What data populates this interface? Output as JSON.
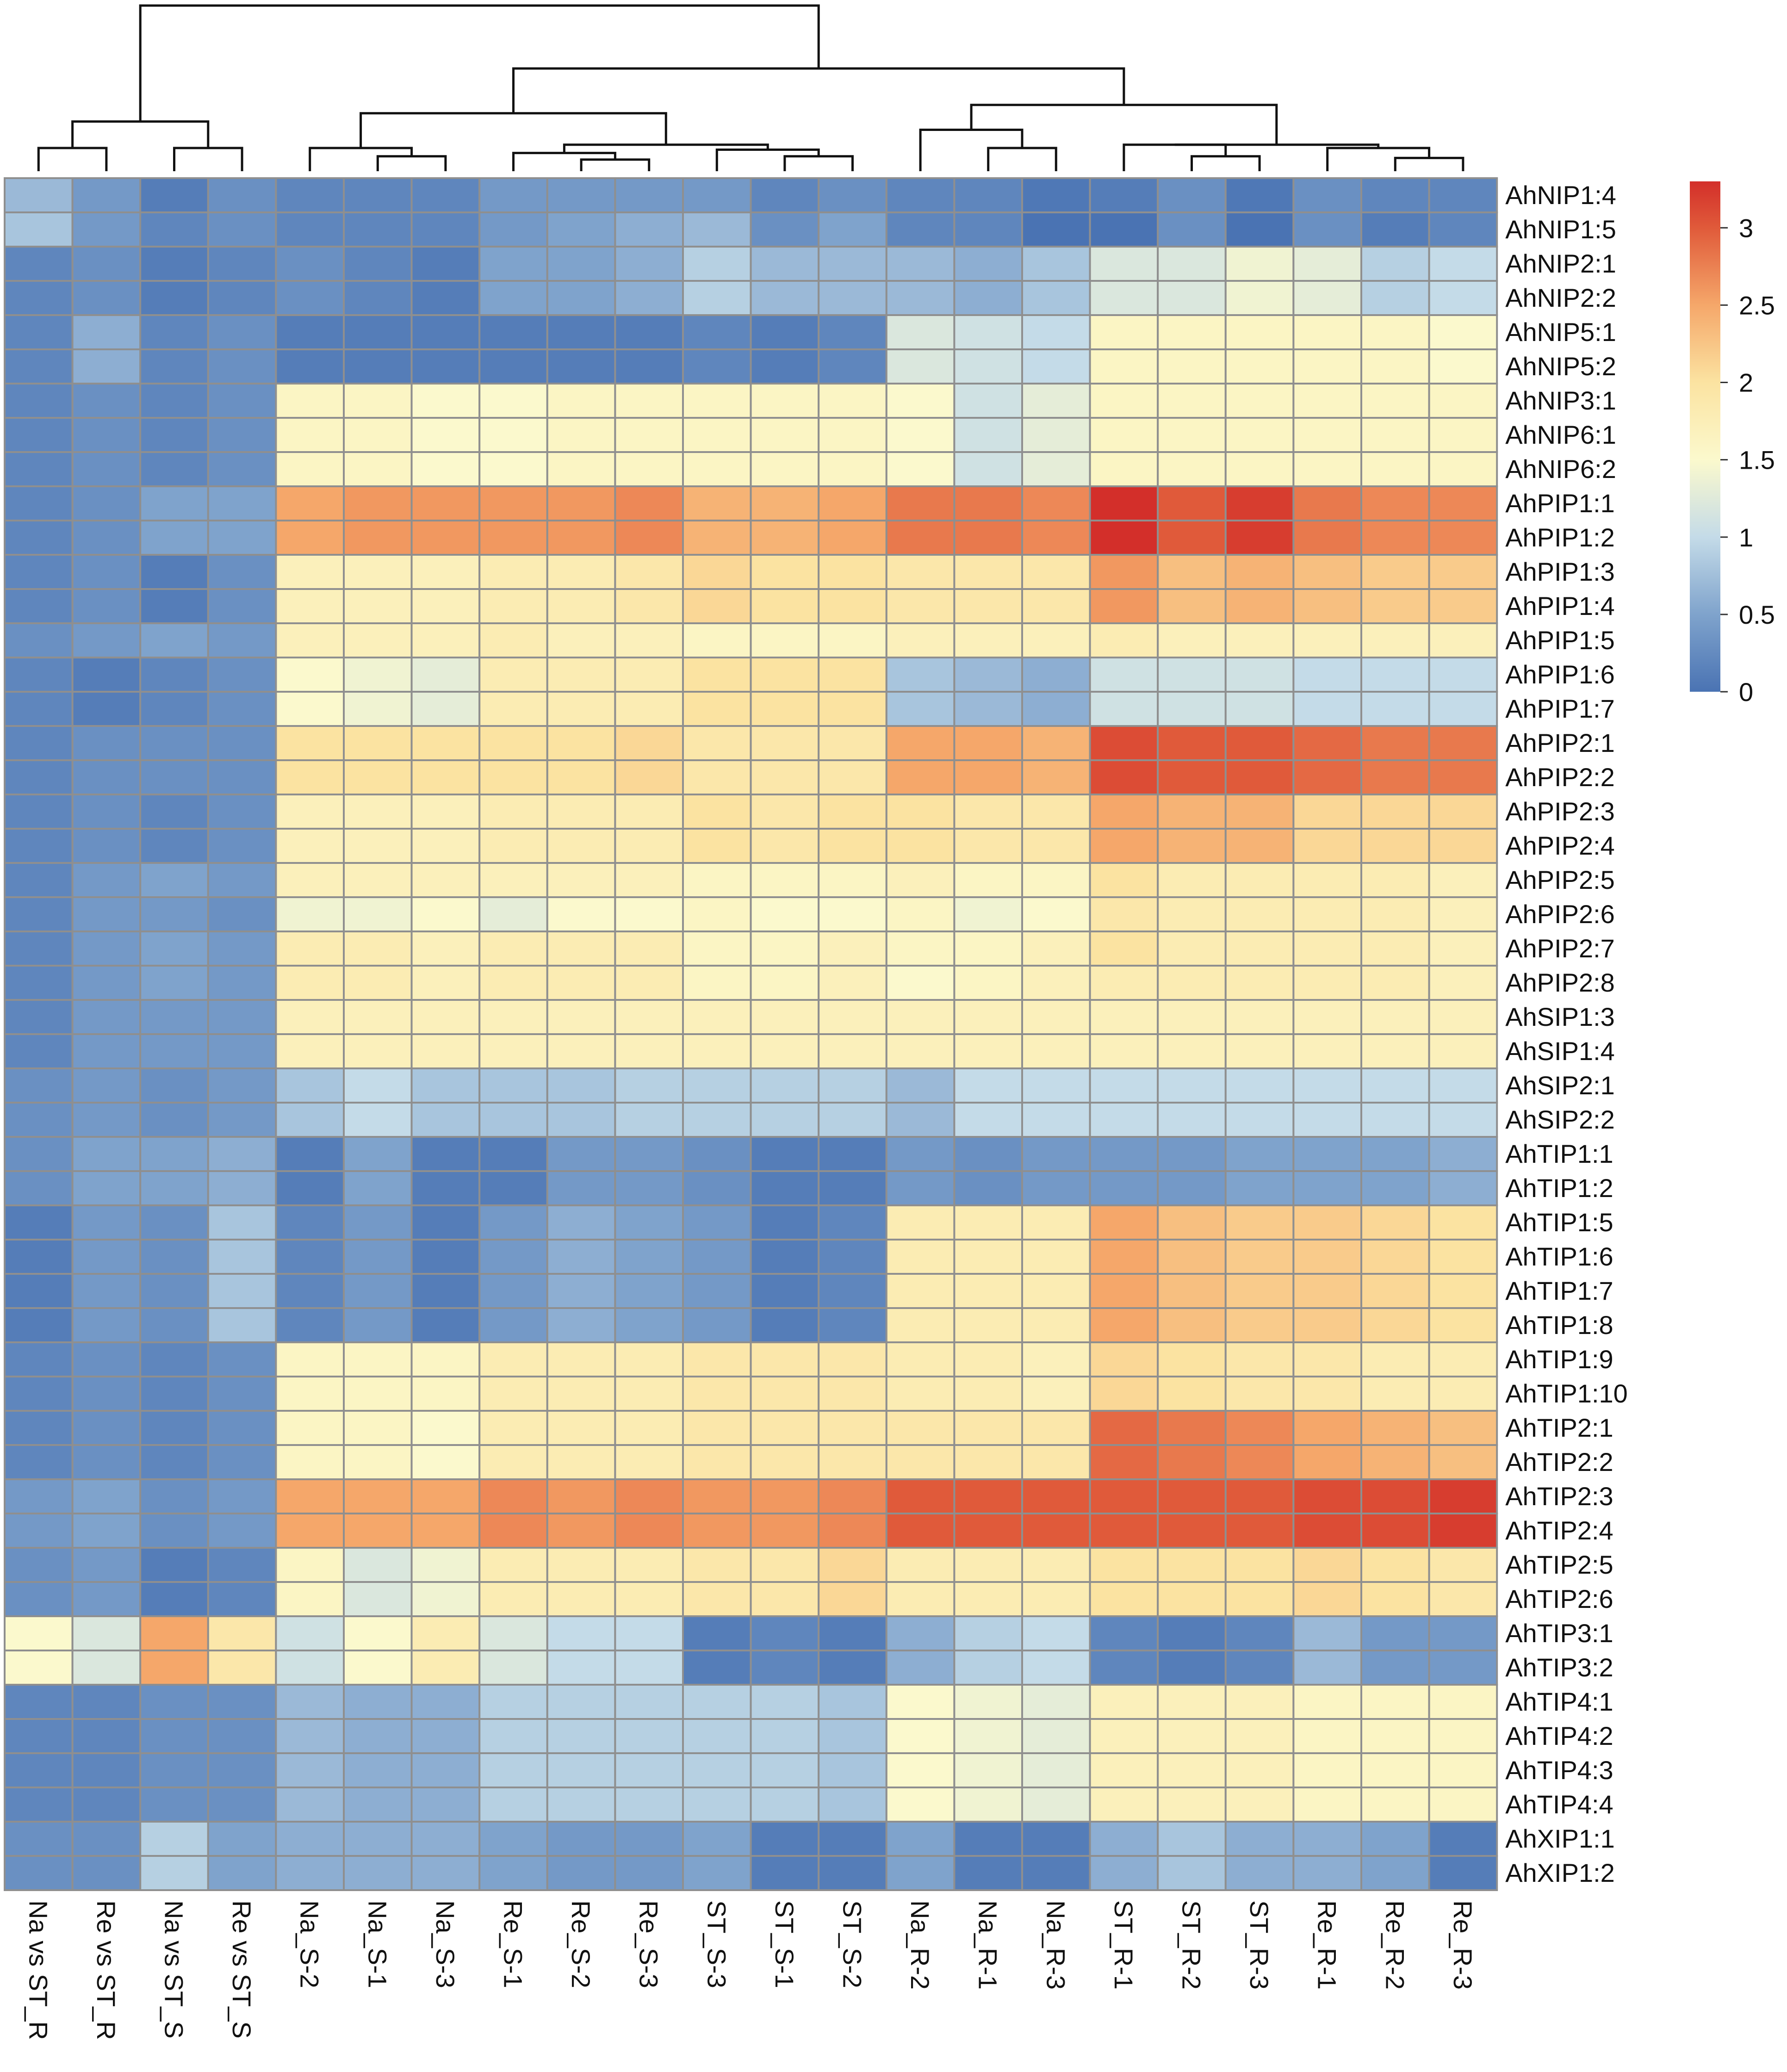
{
  "chart_data": {
    "type": "heatmap",
    "title": "",
    "color_scale": {
      "min": 0,
      "max": 3.3,
      "stops": [
        {
          "v": 0.0,
          "c": "#4a73b3"
        },
        {
          "v": 0.5,
          "c": "#7fa3cc"
        },
        {
          "v": 1.0,
          "c": "#c4dbe8"
        },
        {
          "v": 1.5,
          "c": "#fbf9cd"
        },
        {
          "v": 2.0,
          "c": "#fbe3a1"
        },
        {
          "v": 2.5,
          "c": "#f5a76a"
        },
        {
          "v": 3.0,
          "c": "#e05a3a"
        },
        {
          "v": 3.3,
          "c": "#d32f2a"
        }
      ],
      "legend_ticks": [
        {
          "v": 3,
          "label": "3"
        },
        {
          "v": 2.5,
          "label": "2.5"
        },
        {
          "v": 2,
          "label": "2"
        },
        {
          "v": 1.5,
          "label": "1.5"
        },
        {
          "v": 1,
          "label": "1"
        },
        {
          "v": 0.5,
          "label": "0.5"
        },
        {
          "v": 0,
          "label": "0"
        }
      ]
    },
    "columns": [
      "Na vs ST_R",
      "Re vs ST_R",
      "Na vs ST_S",
      "Re vs ST_S",
      "Na_S-2",
      "Na_S-1",
      "Na_S-3",
      "Re_S-1",
      "Re_S-2",
      "Re_S-3",
      "ST_S-3",
      "ST_S-1",
      "ST_S-2",
      "Na_R-2",
      "Na_R-1",
      "Na_R-3",
      "ST_R-1",
      "ST_R-2",
      "ST_R-3",
      "Re_R-1",
      "Re_R-2",
      "Re_R-3"
    ],
    "rows": [
      "AhNIP1:4",
      "AhNIP1:5",
      "AhNIP2:1",
      "AhNIP2:2",
      "AhNIP5:1",
      "AhNIP5:2",
      "AhNIP3:1",
      "AhNIP6:1",
      "AhNIP6:2",
      "AhPIP1:1",
      "AhPIP1:2",
      "AhPIP1:3",
      "AhPIP1:4",
      "AhPIP1:5",
      "AhPIP1:6",
      "AhPIP1:7",
      "AhPIP2:1",
      "AhPIP2:2",
      "AhPIP2:3",
      "AhPIP2:4",
      "AhPIP2:5",
      "AhPIP2:6",
      "AhPIP2:7",
      "AhPIP2:8",
      "AhSIP1:3",
      "AhSIP1:4",
      "AhSIP2:1",
      "AhSIP2:2",
      "AhTIP1:1",
      "AhTIP1:2",
      "AhTIP1:5",
      "AhTIP1:6",
      "AhTIP1:7",
      "AhTIP1:8",
      "AhTIP1:9",
      "AhTIP1:10",
      "AhTIP2:1",
      "AhTIP2:2",
      "AhTIP2:3",
      "AhTIP2:4",
      "AhTIP2:5",
      "AhTIP2:6",
      "AhTIP3:1",
      "AhTIP3:2",
      "AhTIP4:1",
      "AhTIP4:2",
      "AhTIP4:3",
      "AhTIP4:4",
      "AhXIP1:1",
      "AhXIP1:2"
    ],
    "values": [
      [
        0.7,
        0.4,
        0.1,
        0.3,
        0.2,
        0.2,
        0.2,
        0.4,
        0.4,
        0.4,
        0.4,
        0.2,
        0.3,
        0.2,
        0.2,
        0.05,
        0.1,
        0.3,
        0.05,
        0.3,
        0.2,
        0.2
      ],
      [
        0.8,
        0.4,
        0.2,
        0.3,
        0.2,
        0.2,
        0.2,
        0.4,
        0.5,
        0.6,
        0.7,
        0.3,
        0.5,
        0.2,
        0.2,
        0.0,
        0.0,
        0.3,
        0.0,
        0.3,
        0.1,
        0.2
      ],
      [
        0.2,
        0.3,
        0.1,
        0.2,
        0.3,
        0.2,
        0.1,
        0.5,
        0.5,
        0.6,
        0.9,
        0.7,
        0.7,
        0.7,
        0.6,
        0.8,
        1.2,
        1.2,
        1.4,
        1.3,
        0.9,
        1.0
      ],
      [
        0.2,
        0.3,
        0.1,
        0.2,
        0.3,
        0.2,
        0.1,
        0.5,
        0.5,
        0.6,
        0.9,
        0.7,
        0.7,
        0.7,
        0.6,
        0.8,
        1.2,
        1.2,
        1.4,
        1.3,
        0.9,
        1.0
      ],
      [
        0.2,
        0.6,
        0.2,
        0.3,
        0.1,
        0.1,
        0.1,
        0.1,
        0.1,
        0.1,
        0.2,
        0.1,
        0.2,
        1.2,
        1.1,
        1.0,
        1.6,
        1.6,
        1.6,
        1.6,
        1.6,
        1.5
      ],
      [
        0.2,
        0.6,
        0.2,
        0.3,
        0.1,
        0.1,
        0.1,
        0.1,
        0.1,
        0.1,
        0.2,
        0.1,
        0.2,
        1.2,
        1.1,
        1.0,
        1.6,
        1.6,
        1.6,
        1.6,
        1.6,
        1.5
      ],
      [
        0.2,
        0.3,
        0.2,
        0.3,
        1.6,
        1.6,
        1.5,
        1.5,
        1.6,
        1.6,
        1.6,
        1.6,
        1.6,
        1.5,
        1.1,
        1.3,
        1.6,
        1.6,
        1.6,
        1.6,
        1.6,
        1.6
      ],
      [
        0.2,
        0.3,
        0.2,
        0.3,
        1.6,
        1.6,
        1.5,
        1.5,
        1.6,
        1.6,
        1.6,
        1.6,
        1.6,
        1.5,
        1.1,
        1.3,
        1.6,
        1.6,
        1.6,
        1.6,
        1.6,
        1.6
      ],
      [
        0.2,
        0.3,
        0.2,
        0.3,
        1.6,
        1.6,
        1.5,
        1.5,
        1.6,
        1.6,
        1.6,
        1.6,
        1.6,
        1.5,
        1.1,
        1.3,
        1.6,
        1.6,
        1.6,
        1.6,
        1.6,
        1.6
      ],
      [
        0.2,
        0.3,
        0.5,
        0.5,
        2.5,
        2.6,
        2.6,
        2.6,
        2.6,
        2.7,
        2.4,
        2.4,
        2.5,
        2.8,
        2.8,
        2.7,
        3.3,
        3.0,
        3.2,
        2.8,
        2.7,
        2.7
      ],
      [
        0.2,
        0.3,
        0.5,
        0.5,
        2.5,
        2.6,
        2.6,
        2.6,
        2.6,
        2.7,
        2.4,
        2.4,
        2.5,
        2.8,
        2.8,
        2.7,
        3.3,
        3.0,
        3.2,
        2.8,
        2.7,
        2.7
      ],
      [
        0.2,
        0.3,
        0.1,
        0.3,
        1.7,
        1.7,
        1.7,
        1.8,
        1.8,
        1.9,
        2.1,
        2.0,
        2.0,
        1.9,
        1.9,
        1.9,
        2.6,
        2.3,
        2.4,
        2.3,
        2.2,
        2.2
      ],
      [
        0.2,
        0.3,
        0.1,
        0.3,
        1.7,
        1.7,
        1.7,
        1.8,
        1.8,
        1.9,
        2.1,
        2.0,
        2.0,
        1.9,
        1.9,
        1.9,
        2.6,
        2.3,
        2.4,
        2.3,
        2.2,
        2.2
      ],
      [
        0.3,
        0.4,
        0.5,
        0.4,
        1.7,
        1.7,
        1.7,
        1.8,
        1.7,
        1.7,
        1.6,
        1.6,
        1.6,
        1.7,
        1.7,
        1.7,
        1.8,
        1.7,
        1.7,
        1.7,
        1.7,
        1.7
      ],
      [
        0.2,
        0.1,
        0.2,
        0.3,
        1.5,
        1.4,
        1.3,
        1.8,
        1.8,
        1.8,
        2.0,
        2.0,
        2.0,
        0.8,
        0.7,
        0.6,
        1.1,
        1.1,
        1.1,
        1.0,
        1.0,
        1.0
      ],
      [
        0.2,
        0.1,
        0.2,
        0.3,
        1.5,
        1.4,
        1.3,
        1.8,
        1.8,
        1.8,
        2.0,
        2.0,
        2.0,
        0.8,
        0.7,
        0.6,
        1.1,
        1.1,
        1.1,
        1.0,
        1.0,
        1.0
      ],
      [
        0.2,
        0.3,
        0.3,
        0.3,
        2.0,
        2.0,
        2.0,
        2.0,
        2.0,
        2.1,
        1.9,
        1.9,
        1.9,
        2.5,
        2.5,
        2.4,
        3.1,
        3.0,
        3.0,
        2.9,
        2.8,
        2.8
      ],
      [
        0.2,
        0.3,
        0.3,
        0.3,
        2.0,
        2.0,
        2.0,
        2.0,
        2.0,
        2.1,
        1.9,
        1.9,
        1.9,
        2.5,
        2.5,
        2.4,
        3.1,
        3.0,
        3.0,
        2.9,
        2.8,
        2.8
      ],
      [
        0.2,
        0.3,
        0.2,
        0.3,
        1.7,
        1.7,
        1.7,
        1.8,
        1.8,
        1.8,
        2.0,
        1.9,
        2.0,
        2.0,
        1.9,
        1.9,
        2.5,
        2.4,
        2.4,
        2.1,
        2.1,
        2.1
      ],
      [
        0.2,
        0.3,
        0.2,
        0.3,
        1.7,
        1.7,
        1.7,
        1.8,
        1.8,
        1.8,
        2.0,
        1.9,
        2.0,
        2.0,
        1.9,
        1.9,
        2.5,
        2.4,
        2.4,
        2.1,
        2.1,
        2.1
      ],
      [
        0.2,
        0.4,
        0.5,
        0.4,
        1.7,
        1.7,
        1.7,
        1.7,
        1.7,
        1.7,
        1.6,
        1.6,
        1.6,
        1.7,
        1.6,
        1.6,
        2.0,
        1.8,
        1.8,
        1.8,
        1.8,
        1.7
      ],
      [
        0.2,
        0.4,
        0.4,
        0.3,
        1.4,
        1.4,
        1.5,
        1.3,
        1.5,
        1.5,
        1.6,
        1.5,
        1.5,
        1.6,
        1.4,
        1.5,
        1.9,
        1.8,
        1.8,
        1.8,
        1.8,
        1.7
      ],
      [
        0.2,
        0.4,
        0.5,
        0.4,
        1.8,
        1.8,
        1.7,
        1.8,
        1.8,
        1.8,
        1.6,
        1.6,
        1.7,
        1.6,
        1.6,
        1.7,
        2.0,
        1.8,
        1.8,
        1.8,
        1.8,
        1.7
      ],
      [
        0.2,
        0.4,
        0.5,
        0.4,
        1.8,
        1.8,
        1.7,
        1.8,
        1.8,
        1.8,
        1.6,
        1.6,
        1.7,
        1.5,
        1.6,
        1.7,
        1.8,
        1.8,
        1.8,
        1.8,
        1.8,
        1.7
      ],
      [
        0.2,
        0.4,
        0.4,
        0.4,
        1.7,
        1.7,
        1.7,
        1.7,
        1.7,
        1.7,
        1.7,
        1.7,
        1.7,
        1.7,
        1.7,
        1.7,
        1.7,
        1.7,
        1.7,
        1.7,
        1.7,
        1.7
      ],
      [
        0.2,
        0.4,
        0.4,
        0.4,
        1.7,
        1.7,
        1.7,
        1.7,
        1.7,
        1.7,
        1.7,
        1.7,
        1.7,
        1.7,
        1.7,
        1.7,
        1.7,
        1.7,
        1.7,
        1.7,
        1.7,
        1.7
      ],
      [
        0.3,
        0.4,
        0.3,
        0.4,
        0.8,
        1.0,
        0.8,
        0.8,
        0.8,
        0.9,
        0.9,
        0.9,
        0.9,
        0.7,
        1.0,
        1.0,
        1.0,
        1.0,
        1.0,
        1.0,
        1.0,
        1.0
      ],
      [
        0.3,
        0.4,
        0.3,
        0.4,
        0.8,
        1.0,
        0.8,
        0.8,
        0.8,
        0.9,
        0.9,
        0.9,
        0.9,
        0.7,
        1.0,
        1.0,
        1.0,
        1.0,
        1.0,
        1.0,
        1.0,
        1.0
      ],
      [
        0.3,
        0.5,
        0.5,
        0.6,
        0.1,
        0.5,
        0.1,
        0.1,
        0.4,
        0.4,
        0.3,
        0.1,
        0.1,
        0.4,
        0.3,
        0.4,
        0.4,
        0.4,
        0.5,
        0.5,
        0.5,
        0.6
      ],
      [
        0.3,
        0.5,
        0.5,
        0.6,
        0.1,
        0.5,
        0.1,
        0.1,
        0.4,
        0.4,
        0.3,
        0.1,
        0.1,
        0.4,
        0.3,
        0.4,
        0.4,
        0.4,
        0.5,
        0.5,
        0.5,
        0.6
      ],
      [
        0.1,
        0.4,
        0.3,
        0.8,
        0.2,
        0.4,
        0.1,
        0.4,
        0.6,
        0.5,
        0.4,
        0.1,
        0.2,
        1.8,
        1.8,
        1.8,
        2.5,
        2.3,
        2.2,
        2.2,
        2.1,
        2.0
      ],
      [
        0.1,
        0.4,
        0.3,
        0.8,
        0.2,
        0.4,
        0.1,
        0.4,
        0.6,
        0.5,
        0.4,
        0.1,
        0.2,
        1.8,
        1.8,
        1.8,
        2.5,
        2.3,
        2.2,
        2.2,
        2.1,
        2.0
      ],
      [
        0.1,
        0.4,
        0.3,
        0.8,
        0.2,
        0.4,
        0.1,
        0.4,
        0.6,
        0.5,
        0.4,
        0.1,
        0.2,
        1.8,
        1.8,
        1.8,
        2.5,
        2.3,
        2.2,
        2.2,
        2.1,
        2.0
      ],
      [
        0.1,
        0.4,
        0.3,
        0.8,
        0.2,
        0.4,
        0.1,
        0.4,
        0.6,
        0.5,
        0.4,
        0.1,
        0.2,
        1.8,
        1.8,
        1.8,
        2.5,
        2.3,
        2.2,
        2.2,
        2.1,
        2.0
      ],
      [
        0.2,
        0.3,
        0.2,
        0.3,
        1.6,
        1.6,
        1.6,
        1.8,
        1.8,
        1.8,
        1.9,
        1.9,
        1.9,
        1.8,
        1.8,
        1.7,
        2.1,
        2.0,
        1.9,
        1.9,
        1.8,
        1.8
      ],
      [
        0.2,
        0.3,
        0.2,
        0.3,
        1.6,
        1.6,
        1.6,
        1.8,
        1.8,
        1.8,
        1.9,
        1.9,
        1.9,
        1.8,
        1.8,
        1.7,
        2.1,
        2.0,
        1.9,
        1.9,
        1.8,
        1.8
      ],
      [
        0.2,
        0.3,
        0.2,
        0.3,
        1.6,
        1.6,
        1.5,
        1.8,
        1.8,
        1.8,
        1.9,
        1.9,
        1.9,
        1.9,
        1.9,
        1.9,
        2.9,
        2.8,
        2.7,
        2.5,
        2.4,
        2.3
      ],
      [
        0.2,
        0.3,
        0.2,
        0.3,
        1.6,
        1.6,
        1.5,
        1.8,
        1.8,
        1.8,
        1.9,
        1.9,
        1.9,
        1.9,
        1.9,
        1.9,
        2.9,
        2.8,
        2.7,
        2.5,
        2.4,
        2.3
      ],
      [
        0.4,
        0.5,
        0.3,
        0.4,
        2.5,
        2.5,
        2.5,
        2.7,
        2.6,
        2.7,
        2.6,
        2.6,
        2.7,
        3.0,
        3.0,
        3.0,
        3.0,
        3.0,
        3.0,
        3.1,
        3.1,
        3.2
      ],
      [
        0.4,
        0.5,
        0.3,
        0.4,
        2.5,
        2.5,
        2.5,
        2.7,
        2.6,
        2.7,
        2.6,
        2.6,
        2.7,
        3.0,
        3.0,
        3.0,
        3.0,
        3.0,
        3.0,
        3.1,
        3.1,
        3.2
      ],
      [
        0.3,
        0.4,
        0.1,
        0.2,
        1.6,
        1.2,
        1.4,
        1.8,
        1.8,
        1.8,
        1.9,
        1.9,
        2.1,
        1.8,
        1.8,
        1.8,
        2.0,
        2.0,
        2.0,
        2.1,
        2.0,
        1.9
      ],
      [
        0.3,
        0.4,
        0.1,
        0.2,
        1.6,
        1.2,
        1.4,
        1.8,
        1.8,
        1.8,
        1.9,
        1.9,
        2.1,
        1.8,
        1.8,
        1.8,
        2.0,
        2.0,
        2.0,
        2.1,
        2.0,
        1.9
      ],
      [
        1.5,
        1.2,
        2.5,
        1.9,
        1.1,
        1.5,
        1.8,
        1.2,
        1.0,
        1.0,
        0.1,
        0.2,
        0.1,
        0.6,
        0.9,
        1.0,
        0.2,
        0.1,
        0.2,
        0.7,
        0.4,
        0.4
      ],
      [
        1.5,
        1.2,
        2.5,
        1.9,
        1.1,
        1.5,
        1.8,
        1.2,
        1.0,
        1.0,
        0.1,
        0.2,
        0.1,
        0.6,
        0.9,
        1.0,
        0.2,
        0.1,
        0.2,
        0.7,
        0.4,
        0.4
      ],
      [
        0.2,
        0.2,
        0.3,
        0.3,
        0.7,
        0.6,
        0.6,
        0.9,
        0.9,
        0.9,
        0.9,
        0.9,
        0.8,
        1.5,
        1.4,
        1.3,
        1.7,
        1.7,
        1.7,
        1.6,
        1.6,
        1.6
      ],
      [
        0.2,
        0.2,
        0.3,
        0.3,
        0.7,
        0.6,
        0.6,
        0.9,
        0.9,
        0.9,
        0.9,
        0.9,
        0.8,
        1.5,
        1.4,
        1.3,
        1.7,
        1.7,
        1.7,
        1.6,
        1.6,
        1.6
      ],
      [
        0.2,
        0.2,
        0.3,
        0.3,
        0.7,
        0.6,
        0.6,
        0.9,
        0.9,
        0.9,
        0.9,
        0.9,
        0.8,
        1.5,
        1.4,
        1.3,
        1.7,
        1.7,
        1.7,
        1.6,
        1.6,
        1.6
      ],
      [
        0.2,
        0.2,
        0.3,
        0.3,
        0.7,
        0.6,
        0.6,
        0.9,
        0.9,
        0.9,
        0.9,
        0.9,
        0.8,
        1.5,
        1.4,
        1.3,
        1.7,
        1.7,
        1.7,
        1.6,
        1.6,
        1.6
      ],
      [
        0.3,
        0.3,
        0.9,
        0.5,
        0.6,
        0.6,
        0.6,
        0.5,
        0.4,
        0.4,
        0.5,
        0.1,
        0.1,
        0.5,
        0.1,
        0.1,
        0.6,
        0.8,
        0.6,
        0.6,
        0.5,
        0.1
      ],
      [
        0.3,
        0.3,
        0.9,
        0.5,
        0.6,
        0.6,
        0.6,
        0.5,
        0.4,
        0.4,
        0.5,
        0.1,
        0.1,
        0.5,
        0.1,
        0.1,
        0.6,
        0.8,
        0.6,
        0.6,
        0.5,
        0.1
      ]
    ],
    "column_dendrogram": [
      [
        0,
        1,
        0.14,
        "c22"
      ],
      [
        2,
        3,
        0.14,
        "c23"
      ],
      [
        "c22",
        "c23",
        0.3,
        "c24"
      ],
      [
        5,
        6,
        0.09,
        "c25"
      ],
      [
        4,
        "c25",
        0.14,
        "c26"
      ],
      [
        8,
        9,
        0.07,
        "c27"
      ],
      [
        7,
        "c27",
        0.11,
        "c28"
      ],
      [
        11,
        12,
        0.09,
        "c29"
      ],
      [
        10,
        "c29",
        0.13,
        "c30"
      ],
      [
        "c28",
        "c30",
        0.16,
        "c31"
      ],
      [
        "c26",
        "c31",
        0.35,
        "c32"
      ],
      [
        14,
        15,
        0.14,
        "c33"
      ],
      [
        13,
        "c33",
        0.25,
        "c34"
      ],
      [
        17,
        18,
        0.09,
        "c35"
      ],
      [
        16,
        "c35",
        0.16,
        "c36"
      ],
      [
        20,
        21,
        0.08,
        "c37"
      ],
      [
        19,
        "c37",
        0.14,
        "c38"
      ],
      [
        "c36",
        "c38",
        0.16,
        "c39"
      ],
      [
        "c34",
        "c39",
        0.4,
        "c40"
      ],
      [
        "c32",
        "c40",
        0.62,
        "c41"
      ],
      [
        "c24",
        "c41",
        1.0,
        "c42"
      ]
    ]
  }
}
